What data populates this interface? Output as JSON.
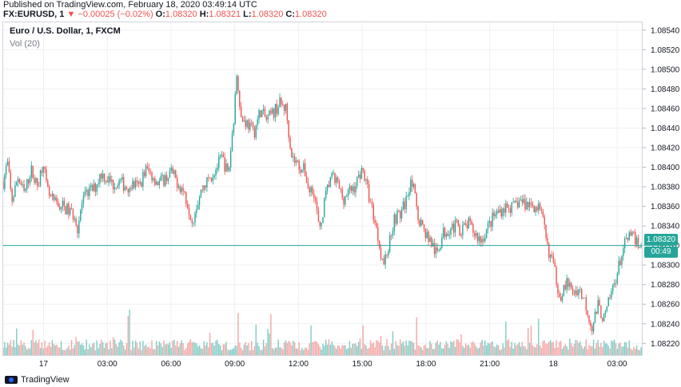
{
  "header": {
    "published": "Published on TradingView.com, February 18, 2020 03:49:14 UTC",
    "symbol": "FX:EURUSD, 1",
    "change": "−0.00025 (−0.02%)",
    "open_label": "O:",
    "open": "1.08320",
    "high_label": "H:",
    "high": "1.08321",
    "low_label": "L:",
    "low": "1.08320",
    "close_label": "C:",
    "close": "1.08320"
  },
  "legend": {
    "title": "Euro / U.S. Dollar, 1, FXCM",
    "volume": "Vol (20)"
  },
  "last_price": {
    "value": "1.08320",
    "countdown": "00:49"
  },
  "footer": {
    "brand": "TradingView",
    "logo_icon": "tradingview-logo-icon"
  },
  "colors": {
    "up": "#26a69a",
    "down": "#ef5350",
    "volume_up": "#80cbc4",
    "volume_down": "#f4a6a4",
    "grid": "#eef0f3"
  },
  "chart_data": {
    "type": "candlestick",
    "instrument": "FX:EURUSD",
    "timeframe": "1 minute",
    "y_ticks": [
      "1.08540",
      "1.08520",
      "1.08500",
      "1.08480",
      "1.08460",
      "1.08440",
      "1.08420",
      "1.08400",
      "1.08380",
      "1.08360",
      "1.08340",
      "1.08320",
      "1.08300",
      "1.08280",
      "1.08260",
      "1.08240",
      "1.08220"
    ],
    "ylim": [
      1.08208,
      1.08548
    ],
    "x_ticks": [
      "17",
      "03:00",
      "06:00",
      "09:00",
      "12:00",
      "15:00",
      "18:00",
      "21:00",
      "18",
      "03:00"
    ],
    "x_tick_hours": [
      0,
      3,
      6,
      9,
      12,
      15,
      18,
      21,
      24,
      27
    ],
    "xlim_hours": [
      -1.9,
      28.2
    ],
    "grid": true,
    "close_path": [
      [
        -1.9,
        1.08385
      ],
      [
        -1.7,
        1.08405
      ],
      [
        -1.5,
        1.08365
      ],
      [
        -1.2,
        1.0839
      ],
      [
        -0.9,
        1.08372
      ],
      [
        -0.6,
        1.08398
      ],
      [
        -0.3,
        1.0838
      ],
      [
        0.0,
        1.08408
      ],
      [
        0.1,
        1.08382
      ],
      [
        0.3,
        1.08368
      ],
      [
        0.6,
        1.08362
      ],
      [
        0.9,
        1.0836
      ],
      [
        1.2,
        1.08355
      ],
      [
        1.5,
        1.0835
      ],
      [
        1.6,
        1.08338
      ],
      [
        1.8,
        1.08362
      ],
      [
        2.1,
        1.08375
      ],
      [
        2.4,
        1.08378
      ],
      [
        2.7,
        1.08394
      ],
      [
        3.0,
        1.08388
      ],
      [
        3.3,
        1.08382
      ],
      [
        3.6,
        1.08385
      ],
      [
        3.9,
        1.0838
      ],
      [
        4.2,
        1.08382
      ],
      [
        4.5,
        1.0838
      ],
      [
        4.8,
        1.08398
      ],
      [
        5.1,
        1.08392
      ],
      [
        5.4,
        1.08384
      ],
      [
        5.7,
        1.08388
      ],
      [
        6.0,
        1.08395
      ],
      [
        6.3,
        1.08385
      ],
      [
        6.6,
        1.08375
      ],
      [
        6.8,
        1.08362
      ],
      [
        7.0,
        1.08345
      ],
      [
        7.2,
        1.08362
      ],
      [
        7.5,
        1.0838
      ],
      [
        7.8,
        1.08388
      ],
      [
        8.1,
        1.08398
      ],
      [
        8.4,
        1.0841
      ],
      [
        8.7,
        1.08392
      ],
      [
        9.0,
        1.08462
      ],
      [
        9.1,
        1.085
      ],
      [
        9.3,
        1.0845
      ],
      [
        9.6,
        1.08445
      ],
      [
        9.9,
        1.08435
      ],
      [
        10.2,
        1.08458
      ],
      [
        10.5,
        1.08448
      ],
      [
        10.8,
        1.08455
      ],
      [
        11.1,
        1.08465
      ],
      [
        11.4,
        1.0846
      ],
      [
        11.7,
        1.0841
      ],
      [
        12.0,
        1.08402
      ],
      [
        12.3,
        1.08396
      ],
      [
        12.5,
        1.08375
      ],
      [
        12.7,
        1.0838
      ],
      [
        13.0,
        1.08332
      ],
      [
        13.2,
        1.08362
      ],
      [
        13.5,
        1.0839
      ],
      [
        13.8,
        1.08385
      ],
      [
        14.1,
        1.08368
      ],
      [
        14.4,
        1.08375
      ],
      [
        14.7,
        1.08382
      ],
      [
        15.0,
        1.084
      ],
      [
        15.3,
        1.08372
      ],
      [
        15.6,
        1.08345
      ],
      [
        15.8,
        1.08322
      ],
      [
        16.0,
        1.083
      ],
      [
        16.2,
        1.08315
      ],
      [
        16.5,
        1.08348
      ],
      [
        16.8,
        1.08352
      ],
      [
        17.1,
        1.08368
      ],
      [
        17.3,
        1.08392
      ],
      [
        17.6,
        1.08352
      ],
      [
        17.9,
        1.08336
      ],
      [
        18.2,
        1.08325
      ],
      [
        18.5,
        1.0831
      ],
      [
        18.8,
        1.08332
      ],
      [
        19.1,
        1.08338
      ],
      [
        19.4,
        1.0834
      ],
      [
        19.7,
        1.08336
      ],
      [
        20.0,
        1.08342
      ],
      [
        20.3,
        1.08332
      ],
      [
        20.6,
        1.08325
      ],
      [
        20.9,
        1.08338
      ],
      [
        21.2,
        1.0835
      ],
      [
        21.5,
        1.08356
      ],
      [
        21.8,
        1.0836
      ],
      [
        22.1,
        1.08358
      ],
      [
        22.4,
        1.08366
      ],
      [
        22.7,
        1.08362
      ],
      [
        23.0,
        1.08362
      ],
      [
        23.3,
        1.08358
      ],
      [
        23.5,
        1.08345
      ],
      [
        23.7,
        1.0832
      ],
      [
        24.0,
        1.083
      ],
      [
        24.3,
        1.08268
      ],
      [
        24.6,
        1.08282
      ],
      [
        24.9,
        1.08272
      ],
      [
        25.2,
        1.08276
      ],
      [
        25.5,
        1.08262
      ],
      [
        25.8,
        1.08236
      ],
      [
        26.1,
        1.08258
      ],
      [
        26.4,
        1.08244
      ],
      [
        26.7,
        1.0827
      ],
      [
        27.0,
        1.08292
      ],
      [
        27.3,
        1.08318
      ],
      [
        27.6,
        1.0833
      ],
      [
        27.9,
        1.08325
      ],
      [
        28.1,
        1.0832
      ]
    ],
    "volume_axis_max": 100
  }
}
